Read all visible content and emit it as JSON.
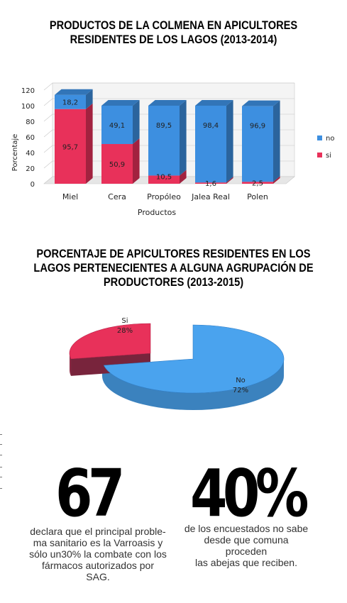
{
  "chart_data": [
    {
      "type": "bar",
      "stacked": true,
      "title": "PRODUCTOS DE LA COLMENA EN APICULTORES RESIDENTES DE LOS LAGOS (2013-2014)",
      "title_lines": [
        "PRODUCTOS DE LA COLMENA EN APICULTORES",
        "RESIDENTES DE LOS LAGOS (2013-2014)"
      ],
      "xlabel": "Productos",
      "ylabel": "Porcentaje",
      "categories": [
        "Miel",
        "Cera",
        "Propóleo",
        "Jalea Real",
        "Polen"
      ],
      "series": [
        {
          "name": "si",
          "values": [
            95.7,
            50.9,
            10.5,
            1.6,
            2.5
          ],
          "labels": [
            "95,7",
            "50,9",
            "10,5",
            "1,6",
            "2,5"
          ],
          "color": "#e8315a"
        },
        {
          "name": "no",
          "values": [
            18.2,
            49.1,
            89.5,
            98.4,
            96.9
          ],
          "labels": [
            "18,2",
            "49,1",
            "89,5",
            "98,4",
            "96,9"
          ],
          "color": "#3d8fe0"
        }
      ],
      "legend": [
        "no",
        "si"
      ],
      "legend_position": "right",
      "ylim": [
        0,
        120
      ],
      "yticks": [
        "0",
        "20",
        "40",
        "60",
        "80",
        "100",
        "120"
      ],
      "grid": true
    },
    {
      "type": "pie",
      "title": "PORCENTAJE DE APICULTORES RESIDENTES EN LOS LAGOS PERTENECIENTES A ALGUNA AGRUPACIÓN DE PRODUCTORES (2013-2015)",
      "title_lines": [
        "PORCENTAJE DE APICULTORES RESIDENTES EN LOS",
        "LAGOS PERTENECIENTES A ALGUNA AGRUPACIÓN DE",
        "PRODUCTORES (2013-2015)"
      ],
      "slices": [
        {
          "name": "Si",
          "value": 28,
          "label": "28%",
          "color": "#e8315a"
        },
        {
          "name": "No",
          "value": 72,
          "label": "72%",
          "color": "#4aa3ee"
        }
      ]
    }
  ],
  "stats": [
    {
      "number": "67",
      "text_lines": [
        "declara que el principal proble-",
        "ma sanitario es la Varroasis y",
        "sólo un30% la combate con los",
        "fármacos autorizados por",
        "SAG."
      ]
    },
    {
      "number": "40%",
      "text_lines": [
        "de los encuestados no sabe",
        "desde que comuna proceden",
        "las abejas que reciben."
      ]
    }
  ],
  "colors": {
    "si": "#e8315a",
    "no": "#3d8fe0"
  }
}
